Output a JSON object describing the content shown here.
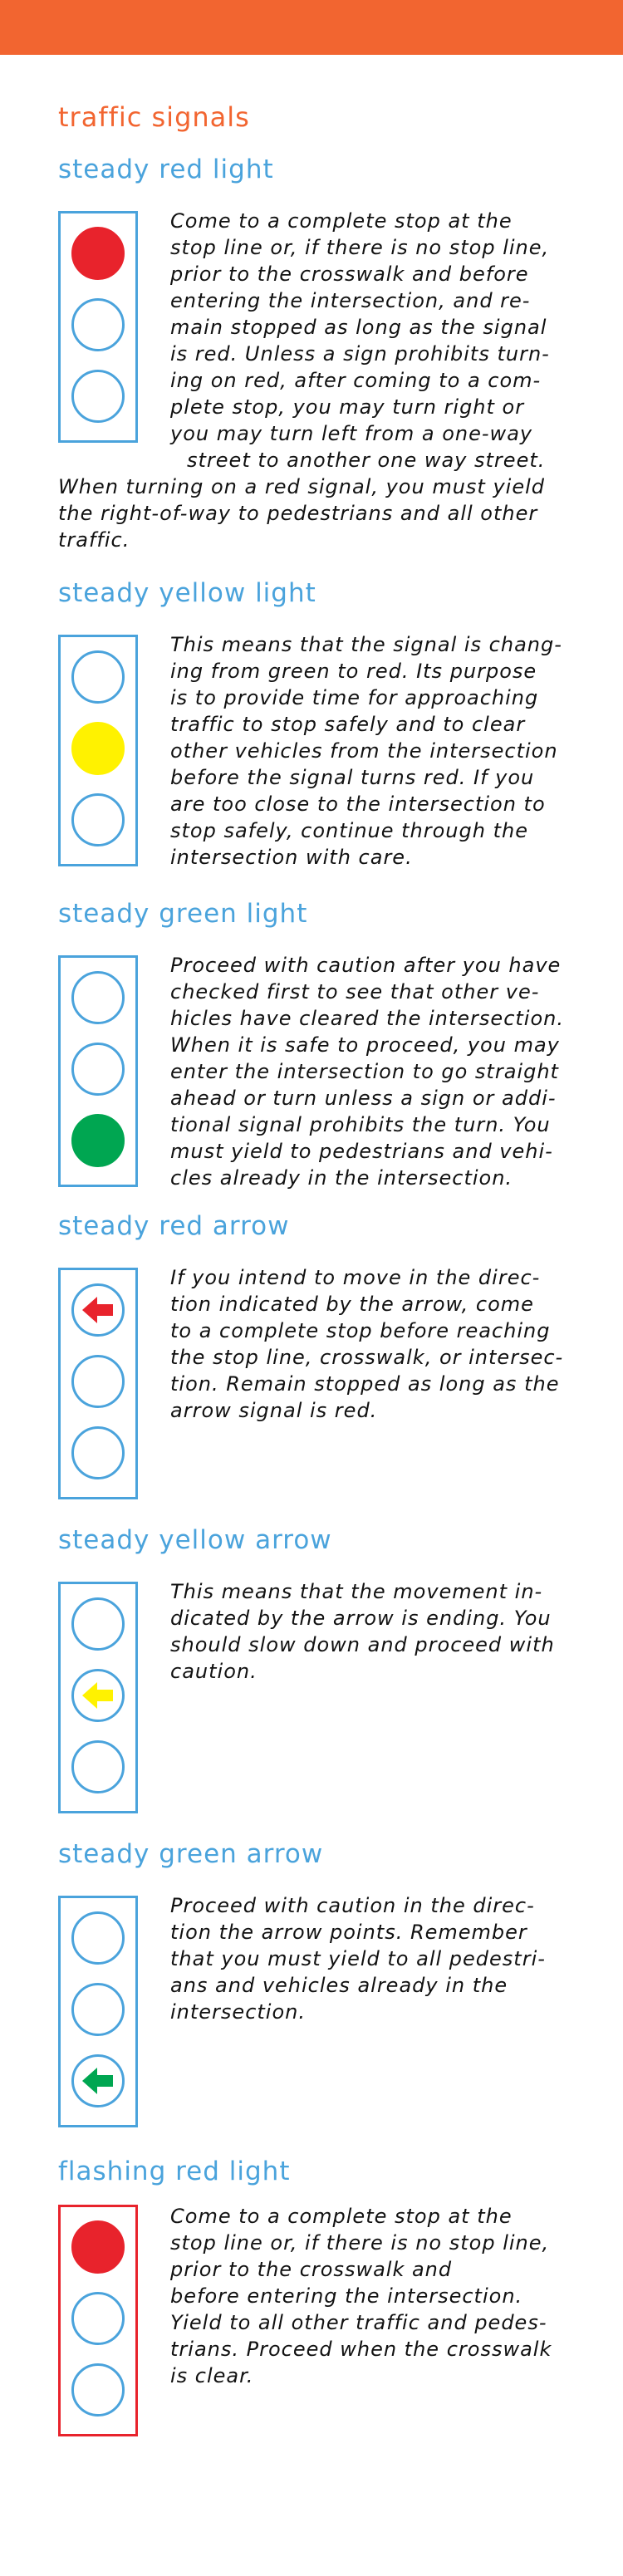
{
  "colors": {
    "header_bar": "#f26530",
    "title": "#f26530",
    "heading": "#4aa3dc",
    "outline": "#4aa3dc",
    "flashing_outline": "#e8232c",
    "red": "#e8232c",
    "yellow": "#fff200",
    "green": "#00a651",
    "text": "#111111"
  },
  "page_title": "traffic signals",
  "sections": [
    {
      "heading": "steady red light",
      "signal": {
        "lit": "top",
        "lit_color": "red",
        "symbol": "circle"
      },
      "text_lines": [
        "Come to a complete stop at the",
        "stop line or, if there is no stop line,",
        "prior to the crosswalk and before",
        "entering the intersection, and re-",
        "main stopped as long as the signal",
        "is red. Unless a sign prohibits turn-",
        "ing on red, after coming to a com-",
        "plete stop, you may turn right or",
        "you may turn left from a one-way",
        "street to another one way street.",
        "When turning on a red signal, you must yield",
        "the right-of-way to pedestrians and all other",
        "traffic."
      ]
    },
    {
      "heading": "steady yellow light",
      "signal": {
        "lit": "middle",
        "lit_color": "yellow",
        "symbol": "circle"
      },
      "text_lines": [
        "This means that the signal is chang-",
        "ing from green to red. Its purpose",
        "is to provide time for approaching",
        "traffic to stop safely and to clear",
        "other vehicles from the intersection",
        "before the signal turns red. If you",
        "are too close to the intersection to",
        "stop safely, continue through the",
        "intersection with care."
      ]
    },
    {
      "heading": "steady green light",
      "signal": {
        "lit": "bottom",
        "lit_color": "green",
        "symbol": "circle"
      },
      "text_lines": [
        "Proceed with caution after you have",
        "checked first to see that other ve-",
        "hicles have cleared the intersection.",
        "When it is safe to proceed, you may",
        "enter the intersection to go straight",
        "ahead or turn unless a sign or addi-",
        "tional signal prohibits the turn. You",
        "must yield to pedestrians and vehi-",
        "cles already in the intersection."
      ]
    },
    {
      "heading": "steady red arrow",
      "signal": {
        "lit": "top",
        "lit_color": "red",
        "symbol": "left-arrow"
      },
      "text_lines": [
        "If you intend to move in the direc-",
        "tion indicated by the arrow, come",
        "to a complete stop before reaching",
        "the stop line, crosswalk, or intersec-",
        "tion. Remain stopped as long as the",
        "arrow signal is red."
      ]
    },
    {
      "heading": "steady yellow arrow",
      "signal": {
        "lit": "middle",
        "lit_color": "yellow",
        "symbol": "left-arrow"
      },
      "text_lines": [
        "This means that the movement in-",
        "dicated by the arrow is ending. You",
        "should slow down and proceed with",
        "caution."
      ]
    },
    {
      "heading": "steady green arrow",
      "signal": {
        "lit": "bottom",
        "lit_color": "green",
        "symbol": "left-arrow"
      },
      "text_lines": [
        "Proceed with caution in the direc-",
        "tion the arrow points. Remember",
        "that you must yield to all pedestri-",
        "ans and vehicles already in the",
        "intersection."
      ]
    },
    {
      "heading": "flashing red light",
      "signal": {
        "lit": "top",
        "lit_color": "red",
        "symbol": "circle",
        "flashing": true
      },
      "text_lines": [
        "Come to a complete stop at the",
        "stop line or, if there is no stop line,",
        "prior to the crosswalk and",
        "before entering the intersection.",
        "Yield to all other traffic and pedes-",
        "trians. Proceed when the crosswalk",
        "is clear."
      ]
    }
  ]
}
